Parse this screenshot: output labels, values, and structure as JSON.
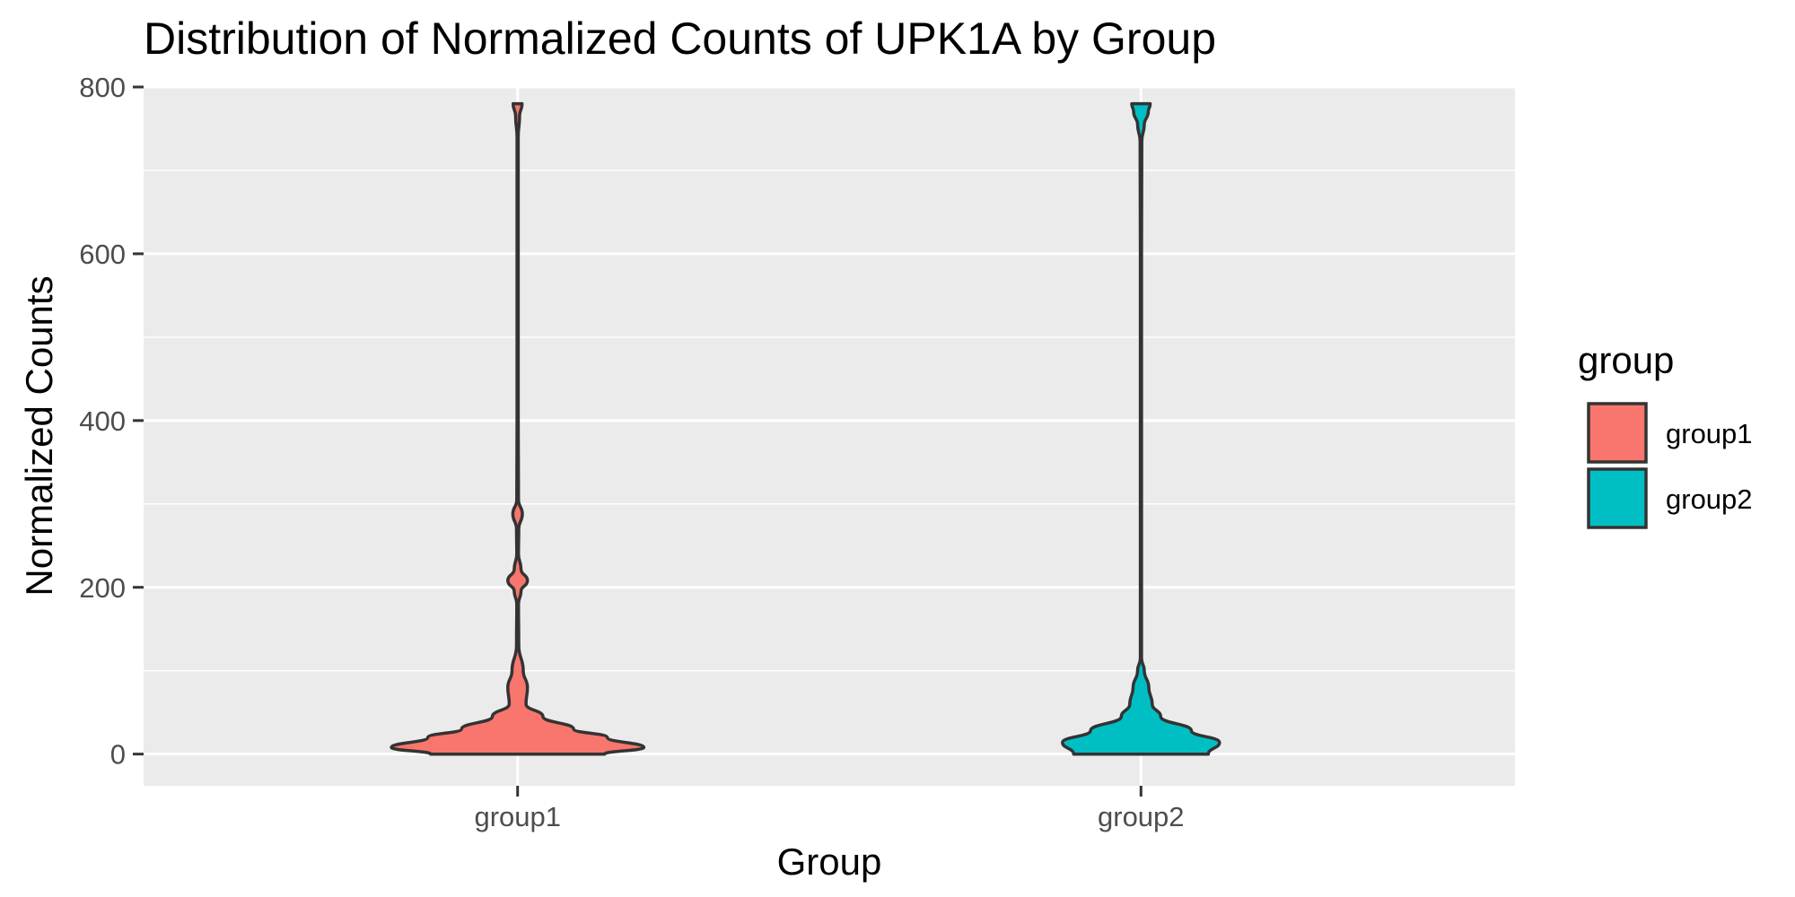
{
  "chart_data": {
    "type": "violin",
    "title": "Distribution of Normalized Counts of UPK1A by Group",
    "xlabel": "Group",
    "ylabel": "Normalized Counts",
    "categories": [
      "group1",
      "group2"
    ],
    "ylim": [
      -38,
      800
    ],
    "yticks": [
      0,
      200,
      400,
      600,
      800
    ],
    "grid": true,
    "legend": {
      "title": "group",
      "placement": "right",
      "entries": [
        "group1",
        "group2"
      ]
    },
    "series": [
      {
        "name": "group1",
        "color": "#F8766D",
        "y_range": [
          0,
          780
        ],
        "density_profile": [
          {
            "y": 0,
            "w": 0.31
          },
          {
            "y": 8,
            "w": 0.45
          },
          {
            "y": 20,
            "w": 0.32
          },
          {
            "y": 30,
            "w": 0.2
          },
          {
            "y": 45,
            "w": 0.09
          },
          {
            "y": 60,
            "w": 0.03
          },
          {
            "y": 80,
            "w": 0.035
          },
          {
            "y": 100,
            "w": 0.02
          },
          {
            "y": 130,
            "w": 0.004
          },
          {
            "y": 180,
            "w": 0.003
          },
          {
            "y": 195,
            "w": 0.012
          },
          {
            "y": 208,
            "w": 0.035
          },
          {
            "y": 222,
            "w": 0.012
          },
          {
            "y": 240,
            "w": 0.003
          },
          {
            "y": 270,
            "w": 0.004
          },
          {
            "y": 288,
            "w": 0.017
          },
          {
            "y": 305,
            "w": 0.003
          },
          {
            "y": 400,
            "w": 0.002
          },
          {
            "y": 600,
            "w": 0.002
          },
          {
            "y": 740,
            "w": 0.002
          },
          {
            "y": 765,
            "w": 0.007
          },
          {
            "y": 780,
            "w": 0.016
          }
        ]
      },
      {
        "name": "group2",
        "color": "#00BFC4",
        "y_range": [
          0,
          780
        ],
        "density_profile": [
          {
            "y": 0,
            "w": 0.24
          },
          {
            "y": 14,
            "w": 0.28
          },
          {
            "y": 28,
            "w": 0.18
          },
          {
            "y": 45,
            "w": 0.07
          },
          {
            "y": 60,
            "w": 0.04
          },
          {
            "y": 80,
            "w": 0.028
          },
          {
            "y": 100,
            "w": 0.012
          },
          {
            "y": 115,
            "w": 0.002
          },
          {
            "y": 200,
            "w": 0.002
          },
          {
            "y": 400,
            "w": 0.002
          },
          {
            "y": 600,
            "w": 0.002
          },
          {
            "y": 735,
            "w": 0.003
          },
          {
            "y": 755,
            "w": 0.012
          },
          {
            "y": 770,
            "w": 0.026
          },
          {
            "y": 780,
            "w": 0.033
          }
        ]
      }
    ]
  }
}
